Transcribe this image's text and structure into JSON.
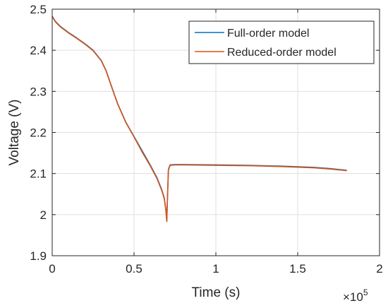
{
  "chart_data": {
    "type": "line",
    "xlabel": "Time (s)",
    "ylabel": "Voltage (V)",
    "x_exponent_label": "×10",
    "x_exponent_power": "5",
    "xlim": [
      0,
      200000
    ],
    "ylim": [
      1.9,
      2.5
    ],
    "x_ticks": [
      0,
      50000,
      100000,
      150000,
      200000
    ],
    "x_tick_labels": [
      "0",
      "0.5",
      "1",
      "1.5",
      "2"
    ],
    "y_ticks": [
      1.9,
      2.0,
      2.1,
      2.2,
      2.3,
      2.4,
      2.5
    ],
    "y_tick_labels": [
      "1.9",
      "2",
      "2.1",
      "2.2",
      "2.3",
      "2.4",
      "2.5"
    ],
    "grid": true,
    "legend_position": "top-right",
    "series": [
      {
        "name": "Full-order model",
        "color": "#0072bd",
        "x": [
          0,
          2000,
          5000,
          10000,
          15000,
          20000,
          25000,
          30000,
          33000,
          36000,
          40000,
          45000,
          50000,
          55000,
          60000,
          64000,
          67000,
          68500,
          69500,
          70000,
          70500,
          71000,
          72000,
          75000,
          80000,
          100000,
          120000,
          140000,
          160000,
          170000,
          180000
        ],
        "y": [
          2.483,
          2.47,
          2.458,
          2.443,
          2.43,
          2.416,
          2.4,
          2.375,
          2.35,
          2.315,
          2.27,
          2.225,
          2.19,
          2.155,
          2.12,
          2.09,
          2.06,
          2.04,
          2.01,
          1.985,
          2.05,
          2.11,
          2.121,
          2.122,
          2.122,
          2.121,
          2.12,
          2.118,
          2.115,
          2.112,
          2.108
        ]
      },
      {
        "name": "Reduced-order model",
        "color": "#d95319",
        "x": [
          0,
          2000,
          5000,
          10000,
          15000,
          20000,
          25000,
          30000,
          33000,
          36000,
          40000,
          45000,
          50000,
          55000,
          60000,
          64000,
          67000,
          68500,
          69500,
          70000,
          70500,
          71000,
          72000,
          75000,
          80000,
          100000,
          120000,
          140000,
          160000,
          170000,
          180000
        ],
        "y": [
          2.482,
          2.469,
          2.457,
          2.442,
          2.429,
          2.415,
          2.399,
          2.374,
          2.349,
          2.314,
          2.269,
          2.224,
          2.189,
          2.152,
          2.118,
          2.088,
          2.058,
          2.038,
          2.008,
          1.983,
          2.048,
          2.108,
          2.12,
          2.121,
          2.121,
          2.12,
          2.119,
          2.117,
          2.114,
          2.111,
          2.107
        ]
      }
    ]
  }
}
